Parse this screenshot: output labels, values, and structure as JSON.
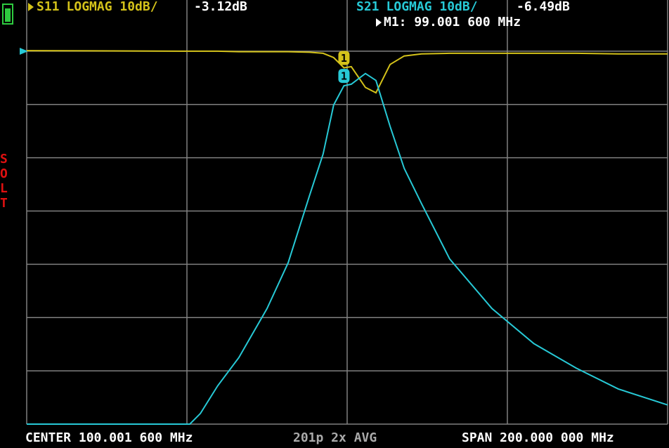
{
  "chart_data": {
    "type": "line",
    "x": [
      0,
      50.9,
      54.2,
      59.6,
      66.2,
      75,
      81.6,
      88.2,
      92.5,
      95.8,
      99.0,
      101.3,
      105.7,
      109,
      113.4,
      117.8,
      123.2,
      132,
      145.2,
      158.3,
      171.5,
      184.6,
      200
    ],
    "series": [
      {
        "name": "S11",
        "format": "LOGMAG 10dB/",
        "readout": "-3.12dB",
        "color": "#d4c21a",
        "values": [
          0.1,
          0,
          0,
          0,
          -0.1,
          -0.1,
          -0.1,
          -0.2,
          -0.4,
          -1.2,
          -3.12,
          -2.9,
          -6.8,
          -7.8,
          -2.5,
          -0.9,
          -0.5,
          -0.4,
          -0.4,
          -0.4,
          -0.4,
          -0.5,
          -0.5
        ]
      },
      {
        "name": "S21",
        "format": "LOGMAG 10dB/",
        "readout": "-6.49dB",
        "color": "#27c9d6",
        "values": [
          -70,
          -70,
          -68,
          -62.8,
          -57.5,
          -48.3,
          -39.7,
          -27.2,
          -19.3,
          -10.1,
          -6.49,
          -6.2,
          -4.2,
          -5.5,
          -14.1,
          -22,
          -28.6,
          -39,
          -48.3,
          -54.9,
          -59.5,
          -63.4,
          -66.4
        ]
      }
    ],
    "xlim": [
      0,
      200
    ],
    "xticks": [
      0,
      50,
      100,
      150,
      200
    ],
    "ylim": [
      -70,
      10
    ],
    "yticks": [
      -70,
      -60,
      -50,
      -40,
      -30,
      -20,
      -10,
      0,
      10
    ],
    "grid": true,
    "marker": {
      "text": "M1: 99.001 600 MHz",
      "badge": "1",
      "x": 99.0016
    },
    "calibration": "SOLT",
    "center": "CENTER 100.001 600 MHz",
    "points": "201p 2x AVG",
    "span": "SPAN 200.000 000 MHz"
  }
}
